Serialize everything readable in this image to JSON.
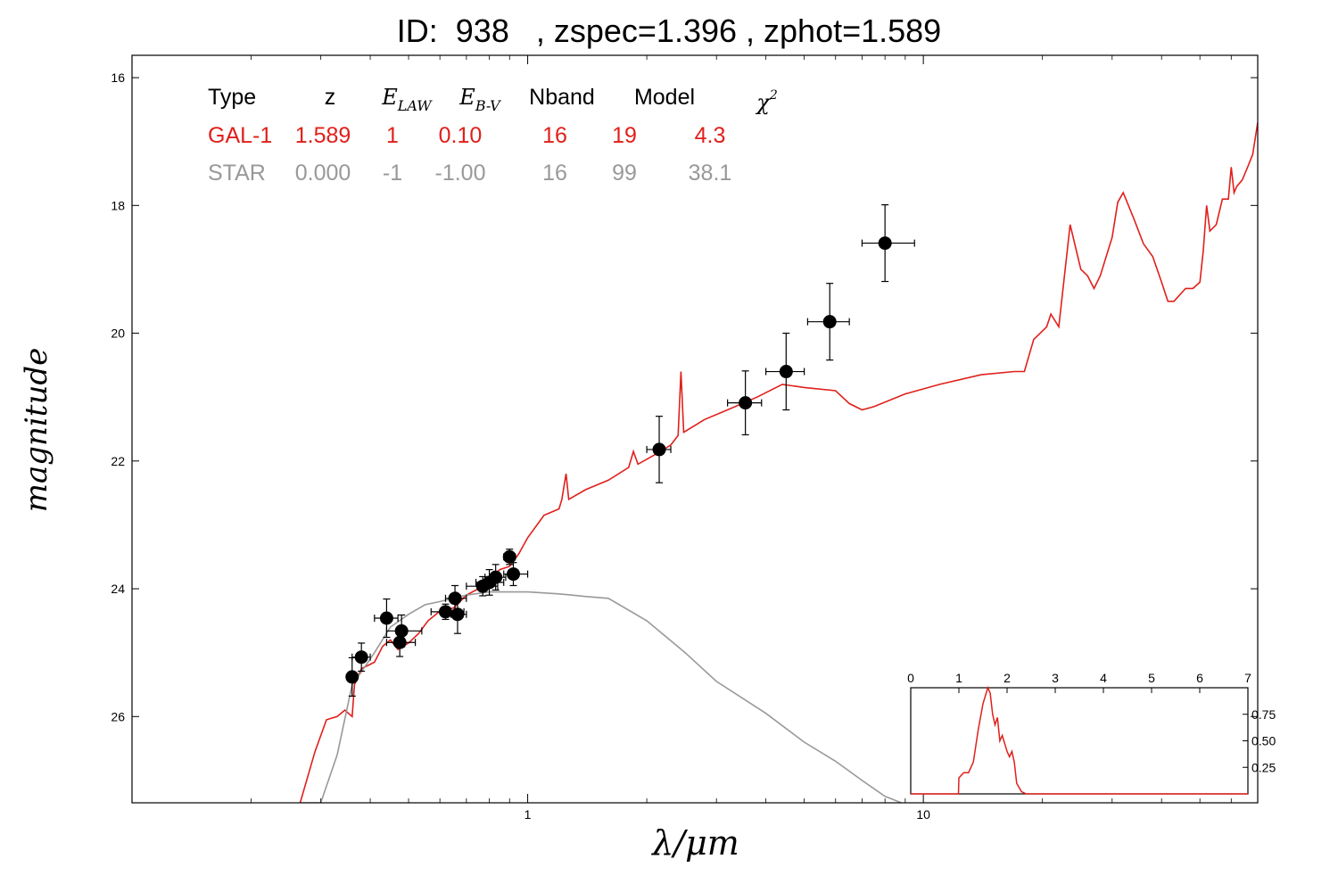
{
  "title": "ID:  938   , zspec=1.396 , zphot=1.589",
  "colors": {
    "galaxy": "#e0201b",
    "star": "#999999",
    "points": "#000000",
    "frame": "#000000"
  },
  "chart_data": {
    "type": "line",
    "xlabel": "λ/μm",
    "ylabel": "magnitude",
    "x_scale": "log",
    "xlim": [
      0.1,
      70
    ],
    "ylim": [
      27.35,
      15.65
    ],
    "y_inverted": true,
    "x_ticks": [
      1,
      10
    ],
    "x_tick_labels": [
      "1",
      "10"
    ],
    "y_ticks": [
      16,
      18,
      20,
      22,
      24,
      26
    ],
    "y_tick_labels": [
      "16",
      "18",
      "20",
      "22",
      "24",
      "26"
    ],
    "fit_table": {
      "headers": [
        "Type",
        "z",
        "E_LAW",
        "E_B-V",
        "Nband",
        "Model",
        "χ²"
      ],
      "rows": [
        {
          "cells": [
            "GAL-1",
            "1.589",
            "1",
            "0.10",
            "16",
            "19",
            "4.3"
          ],
          "color": "#e0201b"
        },
        {
          "cells": [
            "STAR",
            "0.000",
            "-1",
            "-1.00",
            "16",
            "99",
            "38.1"
          ],
          "color": "#999999"
        }
      ]
    },
    "photometry": [
      {
        "x": 0.36,
        "y": 25.38,
        "xerr": [
          0.352,
          0.368
        ],
        "yerr": 0.3
      },
      {
        "x": 0.38,
        "y": 25.07,
        "xerr": [
          0.36,
          0.4
        ],
        "yerr": 0.22
      },
      {
        "x": 0.44,
        "y": 24.46,
        "xerr": [
          0.41,
          0.47
        ],
        "yerr": 0.3
      },
      {
        "x": 0.48,
        "y": 24.66,
        "xerr": [
          0.44,
          0.54
        ],
        "yerr": 0.25
      },
      {
        "x": 0.475,
        "y": 24.84,
        "xerr": [
          0.44,
          0.52
        ],
        "yerr": 0.22
      },
      {
        "x": 0.62,
        "y": 24.36,
        "xerr": [
          0.57,
          0.69
        ],
        "yerr": 0.12
      },
      {
        "x": 0.655,
        "y": 24.15,
        "xerr": [
          0.62,
          0.7
        ],
        "yerr": 0.2
      },
      {
        "x": 0.665,
        "y": 24.4,
        "xerr": [
          0.64,
          0.7
        ],
        "yerr": 0.3
      },
      {
        "x": 0.77,
        "y": 23.96,
        "xerr": [
          0.7,
          0.84
        ],
        "yerr": 0.15
      },
      {
        "x": 0.8,
        "y": 23.9,
        "xerr": [
          0.74,
          0.87
        ],
        "yerr": 0.2
      },
      {
        "x": 0.83,
        "y": 23.82,
        "xerr": [
          0.78,
          0.88
        ],
        "yerr": 0.2
      },
      {
        "x": 0.9,
        "y": 23.5,
        "xerr": [
          0.87,
          0.93
        ],
        "yerr": 0.12
      },
      {
        "x": 0.92,
        "y": 23.77,
        "xerr": [
          0.87,
          1.0
        ],
        "yerr": 0.18
      },
      {
        "x": 2.15,
        "y": 21.82,
        "xerr": [
          2.0,
          2.3
        ],
        "yerr": 0.52
      },
      {
        "x": 3.55,
        "y": 21.09,
        "xerr": [
          3.2,
          3.9
        ],
        "yerr": 0.5
      },
      {
        "x": 4.5,
        "y": 20.6,
        "xerr": [
          4.0,
          5.0
        ],
        "yerr": 0.6
      },
      {
        "x": 5.8,
        "y": 19.82,
        "xerr": [
          5.1,
          6.5
        ],
        "yerr": 0.6
      },
      {
        "x": 8.0,
        "y": 18.59,
        "xerr": [
          7.0,
          9.5
        ],
        "yerr": 0.6
      }
    ],
    "series": [
      {
        "name": "GAL-1",
        "color": "#e0201b",
        "points": [
          [
            0.266,
            27.35
          ],
          [
            0.29,
            26.55
          ],
          [
            0.31,
            26.05
          ],
          [
            0.33,
            26.0
          ],
          [
            0.345,
            25.9
          ],
          [
            0.36,
            26.0
          ],
          [
            0.365,
            25.5
          ],
          [
            0.38,
            25.25
          ],
          [
            0.41,
            25.15
          ],
          [
            0.43,
            24.9
          ],
          [
            0.45,
            24.8
          ],
          [
            0.47,
            24.95
          ],
          [
            0.5,
            24.85
          ],
          [
            0.53,
            24.7
          ],
          [
            0.56,
            24.5
          ],
          [
            0.6,
            24.35
          ],
          [
            0.65,
            24.3
          ],
          [
            0.7,
            24.1
          ],
          [
            0.75,
            24.0
          ],
          [
            0.8,
            23.85
          ],
          [
            0.85,
            23.7
          ],
          [
            0.9,
            23.65
          ],
          [
            0.95,
            23.45
          ],
          [
            1.0,
            23.2
          ],
          [
            1.1,
            22.85
          ],
          [
            1.2,
            22.75
          ],
          [
            1.22,
            22.6
          ],
          [
            1.25,
            22.2
          ],
          [
            1.27,
            22.6
          ],
          [
            1.4,
            22.45
          ],
          [
            1.6,
            22.3
          ],
          [
            1.8,
            22.1
          ],
          [
            1.85,
            21.85
          ],
          [
            1.9,
            22.05
          ],
          [
            2.1,
            21.9
          ],
          [
            2.3,
            21.75
          ],
          [
            2.4,
            21.6
          ],
          [
            2.44,
            20.6
          ],
          [
            2.48,
            21.55
          ],
          [
            2.8,
            21.35
          ],
          [
            3.2,
            21.2
          ],
          [
            3.8,
            21.0
          ],
          [
            4.4,
            20.8
          ],
          [
            5.0,
            20.85
          ],
          [
            6.0,
            20.9
          ],
          [
            6.5,
            21.1
          ],
          [
            7.0,
            21.2
          ],
          [
            7.5,
            21.15
          ],
          [
            9.0,
            20.95
          ],
          [
            11.0,
            20.8
          ],
          [
            14.0,
            20.65
          ],
          [
            17.0,
            20.6
          ],
          [
            18.0,
            20.6
          ],
          [
            19.0,
            20.1
          ],
          [
            20.5,
            19.9
          ],
          [
            21.0,
            19.7
          ],
          [
            22.0,
            19.9
          ],
          [
            23.5,
            18.3
          ],
          [
            25.0,
            19.0
          ],
          [
            26.0,
            19.1
          ],
          [
            27.0,
            19.3
          ],
          [
            28.0,
            19.1
          ],
          [
            30.0,
            18.5
          ],
          [
            31.0,
            17.95
          ],
          [
            32.0,
            17.8
          ],
          [
            34.0,
            18.2
          ],
          [
            36.0,
            18.6
          ],
          [
            38.0,
            18.8
          ],
          [
            40.0,
            19.2
          ],
          [
            41.5,
            19.5
          ],
          [
            43.0,
            19.5
          ],
          [
            46.0,
            19.3
          ],
          [
            48.0,
            19.3
          ],
          [
            50.0,
            19.2
          ],
          [
            51.0,
            18.7
          ],
          [
            52.0,
            18.0
          ],
          [
            53.0,
            18.4
          ],
          [
            55.0,
            18.3
          ],
          [
            57.0,
            17.9
          ],
          [
            59.0,
            17.9
          ],
          [
            60.0,
            17.4
          ],
          [
            61.0,
            17.8
          ],
          [
            62.0,
            17.7
          ],
          [
            64.0,
            17.6
          ],
          [
            66.0,
            17.4
          ],
          [
            68.0,
            17.2
          ],
          [
            70.0,
            16.7
          ]
        ]
      },
      {
        "name": "STAR",
        "color": "#999999",
        "points": [
          [
            0.268,
            27.35
          ],
          [
            0.3,
            27.35
          ],
          [
            0.33,
            26.6
          ],
          [
            0.36,
            25.5
          ],
          [
            0.38,
            25.3
          ],
          [
            0.41,
            25.0
          ],
          [
            0.45,
            24.6
          ],
          [
            0.5,
            24.4
          ],
          [
            0.55,
            24.25
          ],
          [
            0.6,
            24.2
          ],
          [
            0.7,
            24.1
          ],
          [
            0.8,
            24.05
          ],
          [
            1.0,
            24.05
          ],
          [
            1.2,
            24.08
          ],
          [
            1.4,
            24.12
          ],
          [
            1.6,
            24.15
          ],
          [
            2.0,
            24.5
          ],
          [
            2.5,
            25.0
          ],
          [
            3.0,
            25.45
          ],
          [
            4.0,
            25.95
          ],
          [
            5.0,
            26.4
          ],
          [
            6.0,
            26.7
          ],
          [
            7.0,
            27.0
          ],
          [
            8.0,
            27.25
          ],
          [
            8.8,
            27.35
          ]
        ]
      }
    ],
    "inset": {
      "type": "line",
      "xlim": [
        0,
        7
      ],
      "ylim": [
        0,
        1.0
      ],
      "x_ticks": [
        0,
        1,
        2,
        3,
        4,
        5,
        6,
        7
      ],
      "x_tick_labels": [
        "0",
        "1",
        "2",
        "3",
        "4",
        "5",
        "6",
        "7"
      ],
      "y_ticks": [
        0.25,
        0.5,
        0.75
      ],
      "y_tick_labels": [
        "0.25",
        "0.50",
        "0.75"
      ],
      "color": "#e0201b",
      "points": [
        [
          0,
          0.0
        ],
        [
          0.99,
          0.0
        ],
        [
          1.0,
          0.15
        ],
        [
          1.1,
          0.2
        ],
        [
          1.2,
          0.2
        ],
        [
          1.3,
          0.3
        ],
        [
          1.4,
          0.6
        ],
        [
          1.5,
          0.85
        ],
        [
          1.6,
          1.0
        ],
        [
          1.65,
          0.95
        ],
        [
          1.7,
          0.75
        ],
        [
          1.75,
          0.65
        ],
        [
          1.8,
          0.72
        ],
        [
          1.85,
          0.5
        ],
        [
          1.9,
          0.55
        ],
        [
          2.0,
          0.4
        ],
        [
          2.05,
          0.35
        ],
        [
          2.1,
          0.4
        ],
        [
          2.15,
          0.3
        ],
        [
          2.2,
          0.1
        ],
        [
          2.3,
          0.02
        ],
        [
          2.4,
          0.0
        ],
        [
          7,
          0.0
        ]
      ]
    }
  }
}
